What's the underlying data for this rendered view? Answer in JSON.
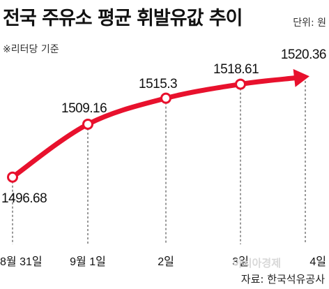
{
  "header": {
    "title": "전국 주유소 평균 휘발유값 추이",
    "unit": "단위: 원",
    "note": "※리터당 기준"
  },
  "footer": {
    "source": "자료: 한국석유공사",
    "watermark": "아시아경제"
  },
  "colors": {
    "line": "#e8112d",
    "marker_fill": "#ffffff",
    "dashed": "#333333"
  },
  "chart_data": {
    "type": "line",
    "title": "전국 주유소 평균 휘발유값 추이",
    "categories": [
      "8월 31일",
      "9월 1일",
      "2일",
      "3일",
      "4일"
    ],
    "values": [
      1496.68,
      1509.16,
      1515.3,
      1518.61,
      1520.36
    ],
    "value_labels": [
      "1496.68",
      "1509.16",
      "1515.3",
      "1518.61",
      "1520.36"
    ],
    "xlabel": "",
    "ylabel": "",
    "ylim": [
      1494,
      1522
    ],
    "grid": false,
    "legend": "none",
    "markers": [
      true,
      true,
      true,
      true,
      false
    ],
    "last_point_arrow": true
  }
}
